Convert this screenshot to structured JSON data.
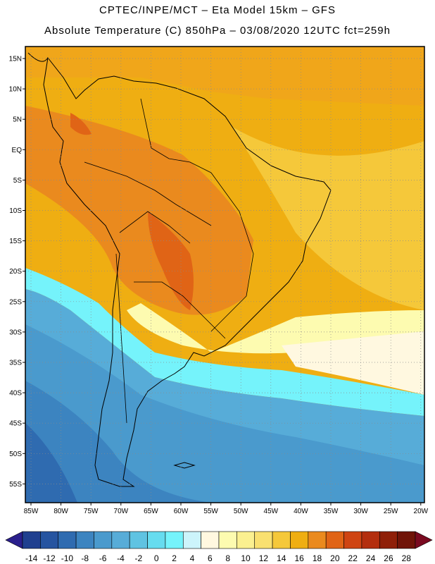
{
  "header": {
    "line1": "CPTEC/INPE/MCT –  Eta Model 15km – GFS",
    "line2": "Absolute Temperature (C) 850hPa – 03/08/2020 12UTC fct=259h"
  },
  "map": {
    "lat_labels": [
      "15N",
      "10N",
      "5N",
      "EQ",
      "5S",
      "10S",
      "15S",
      "20S",
      "25S",
      "30S",
      "35S",
      "40S",
      "45S",
      "50S",
      "55S"
    ],
    "lon_labels": [
      "85W",
      "80W",
      "75W",
      "70W",
      "65W",
      "60W",
      "55W",
      "50W",
      "45W",
      "40W",
      "35W",
      "30W",
      "25W",
      "20W"
    ]
  },
  "colorbar": {
    "labels": [
      "-14",
      "-12",
      "-10",
      "-8",
      "-6",
      "-4",
      "-2",
      "0",
      "2",
      "4",
      "6",
      "8",
      "10",
      "12",
      "14",
      "16",
      "18",
      "20",
      "22",
      "24",
      "26",
      "28"
    ],
    "colors": [
      "#1f3f8f",
      "#2654a0",
      "#2f6bb0",
      "#3c84c0",
      "#4a9acd",
      "#57acd8",
      "#5fc3e2",
      "#66dcef",
      "#75f3fb",
      "#ccf4fb",
      "#fff8e0",
      "#fdfbb0",
      "#fbf090",
      "#f9e070",
      "#f5c83a",
      "#efae12",
      "#ea8a1e",
      "#e06416",
      "#cf4412",
      "#b32e0e",
      "#8f1f08",
      "#701408"
    ],
    "under_color": "#2a1f8c",
    "over_color": "#7a0a20"
  },
  "colors": {
    "tropics": "#efae12",
    "warm_core": "#e06416",
    "ocean_south": "#3c84c0",
    "frame": "#000000"
  }
}
